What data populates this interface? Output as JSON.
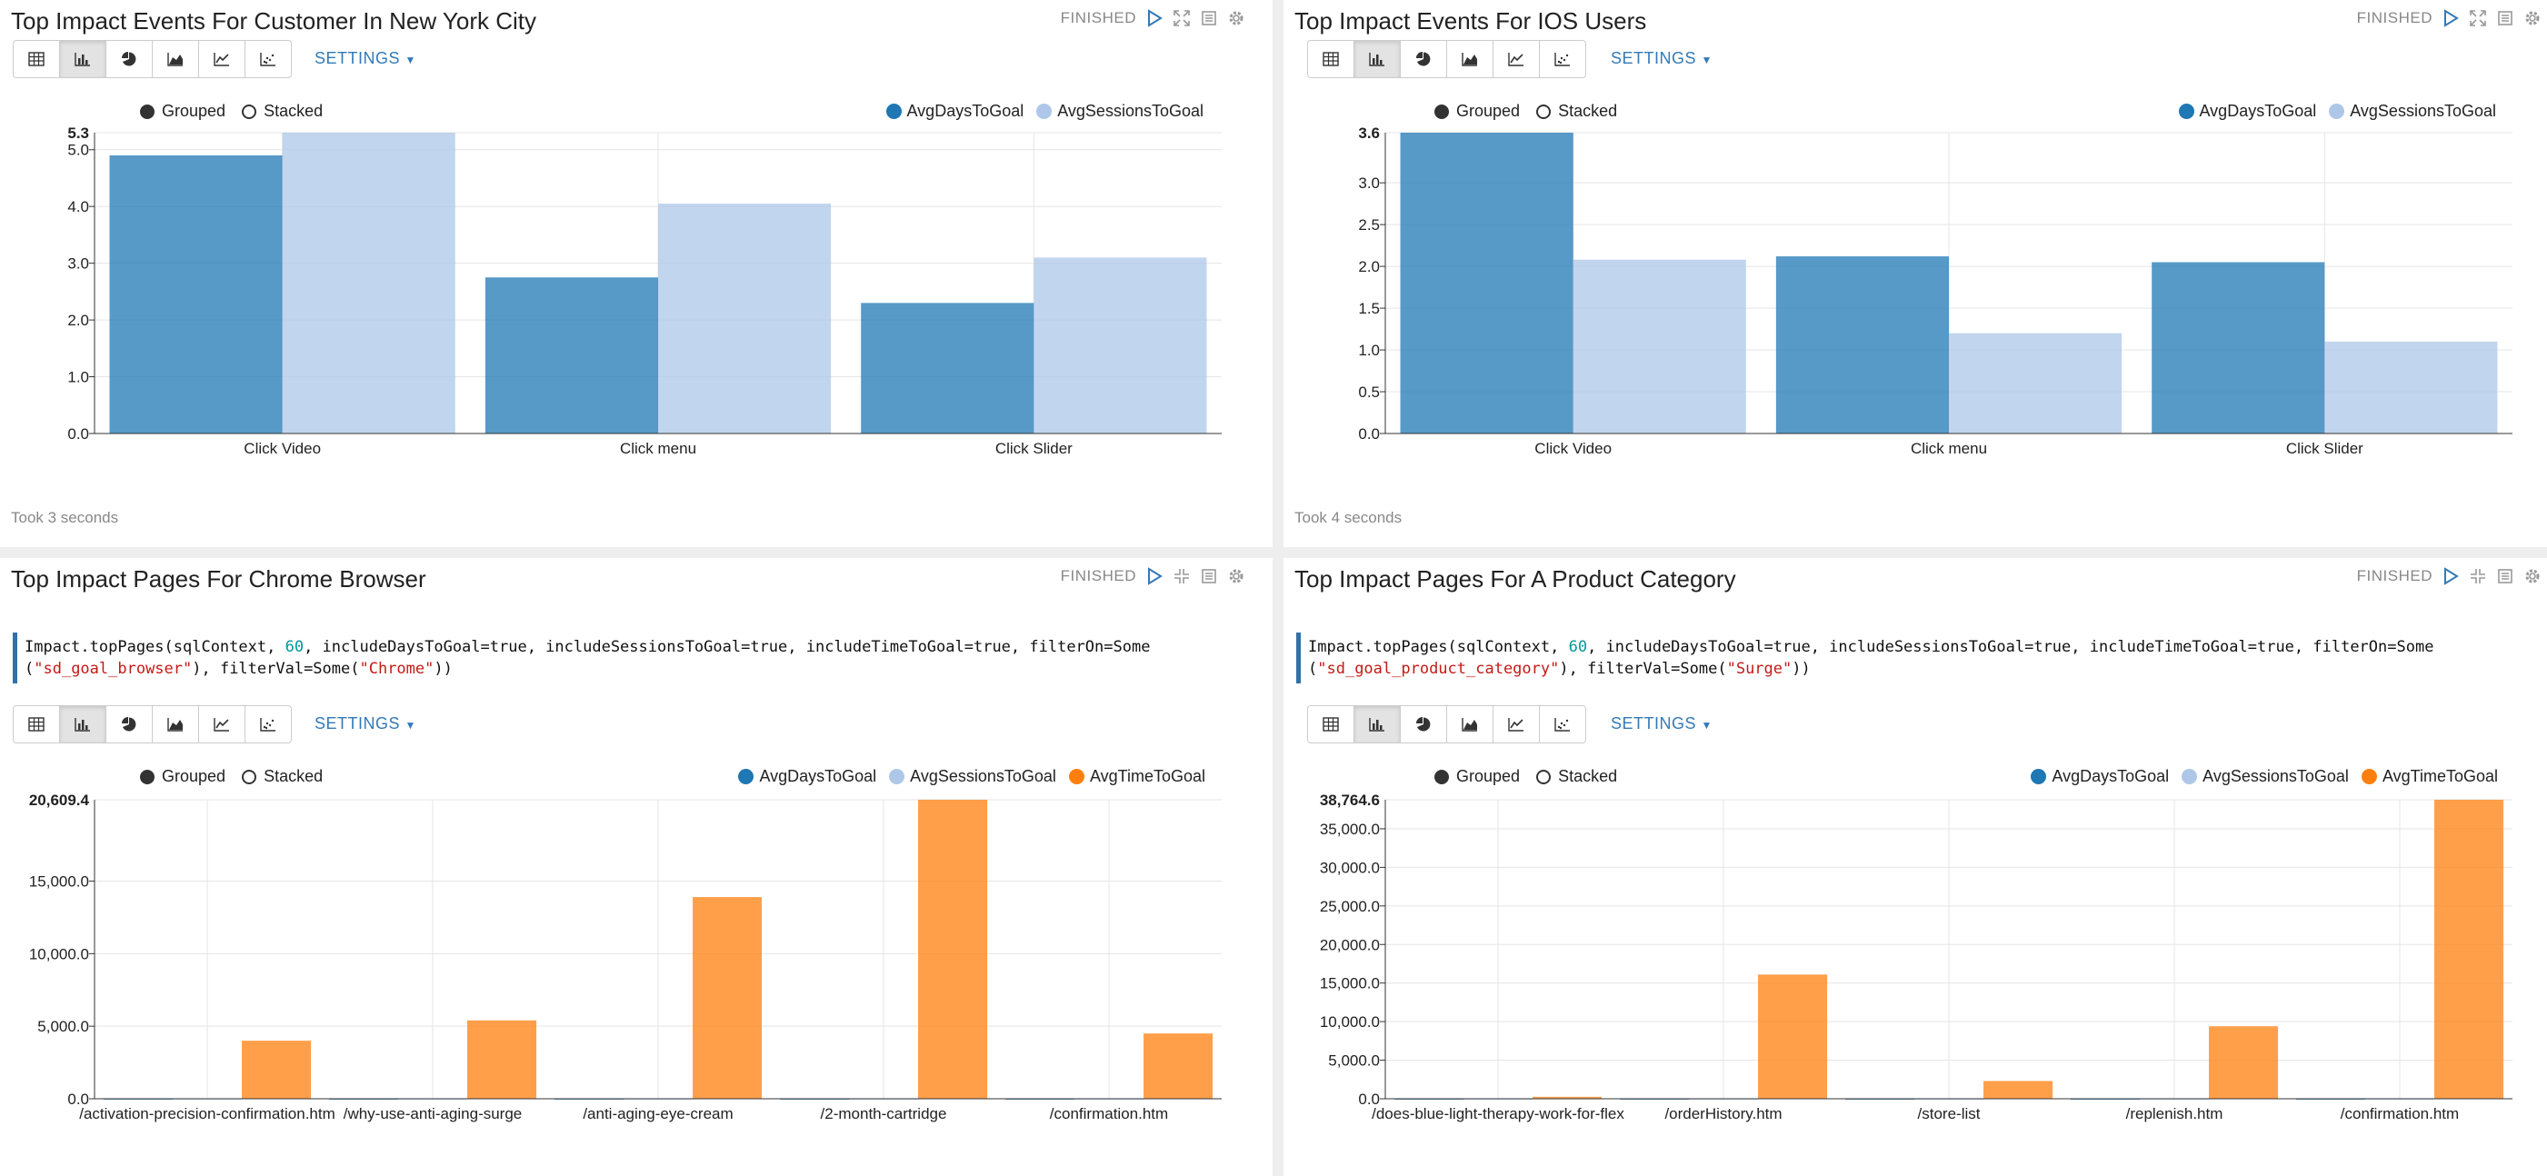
{
  "panels": [
    {
      "title": "Top Impact Events For Customer In New York City",
      "status": "FINISHED",
      "settings_label": "SETTINGS",
      "mode_grouped": "Grouped",
      "mode_stacked": "Stacked",
      "footer": "Took 3 seconds"
    },
    {
      "title": "Top Impact Events For IOS Users",
      "status": "FINISHED",
      "settings_label": "SETTINGS",
      "mode_grouped": "Grouped",
      "mode_stacked": "Stacked",
      "footer": "Took 4 seconds"
    },
    {
      "title": "Top Impact Pages For Chrome Browser",
      "status": "FINISHED",
      "settings_label": "SETTINGS",
      "mode_grouped": "Grouped",
      "mode_stacked": "Stacked",
      "code_line1": {
        "a": "Impact.topPages(sqlContext, ",
        "num": "60",
        "b": ", includeDaysToGoal=true, includeSessionsToGoal=true, includeTimeToGoal=true, filterOn=Some"
      },
      "code_line2": {
        "a": "(",
        "str1": "\"sd_goal_browser\"",
        "b": "), filterVal=Some(",
        "str2": "\"Chrome\"",
        "c": "))"
      }
    },
    {
      "title": "Top Impact Pages For A Product Category",
      "status": "FINISHED",
      "settings_label": "SETTINGS",
      "mode_grouped": "Grouped",
      "mode_stacked": "Stacked",
      "code_line1": {
        "a": "Impact.topPages(sqlContext, ",
        "num": "60",
        "b": ", includeDaysToGoal=true, includeSessionsToGoal=true, includeTimeToGoal=true, filterOn=Some"
      },
      "code_line2": {
        "a": "(",
        "str1": "\"sd_goal_product_category\"",
        "b": "), filterVal=Some(",
        "str2": "\"Surge\"",
        "c": "))"
      }
    }
  ],
  "colors": {
    "days": "#1f77b4",
    "sessions": "#aec7e8",
    "time": "#ff7f0e",
    "link": "#337ab7"
  },
  "toolbar_icons": [
    "table-icon",
    "bar-chart-icon",
    "pie-chart-icon",
    "area-chart-icon",
    "line-chart-icon",
    "scatter-chart-icon"
  ],
  "chart_data": [
    {
      "type": "bar",
      "categories": [
        "Click Video",
        "Click menu",
        "Click Slider"
      ],
      "series": [
        {
          "name": "AvgDaysToGoal",
          "values": [
            4.9,
            2.75,
            2.3
          ]
        },
        {
          "name": "AvgSessionsToGoal",
          "values": [
            5.3,
            4.05,
            3.1
          ]
        }
      ],
      "yticks": [
        "0.0",
        "1.0",
        "2.0",
        "3.0",
        "4.0",
        "5.0"
      ],
      "ymax_label": "5.3",
      "ylim": [
        0,
        5.3
      ],
      "grid": true,
      "legend": "top-right"
    },
    {
      "type": "bar",
      "categories": [
        "Click Video",
        "Click menu",
        "Click Slider"
      ],
      "series": [
        {
          "name": "AvgDaysToGoal",
          "values": [
            3.6,
            2.12,
            2.05
          ]
        },
        {
          "name": "AvgSessionsToGoal",
          "values": [
            2.08,
            1.2,
            1.1
          ]
        }
      ],
      "yticks": [
        "0.0",
        "0.5",
        "1.0",
        "1.5",
        "2.0",
        "2.5",
        "3.0"
      ],
      "ymax_label": "3.6",
      "ylim": [
        0,
        3.6
      ],
      "grid": true,
      "legend": "top-right"
    },
    {
      "type": "bar",
      "categories": [
        "/activation-precision-confirmation.htm",
        "/why-use-anti-aging-surge",
        "/anti-aging-eye-cream",
        "/2-month-cartridge",
        "/confirmation.htm"
      ],
      "series": [
        {
          "name": "AvgDaysToGoal",
          "values": [
            3,
            2,
            3,
            1,
            2
          ]
        },
        {
          "name": "AvgSessionsToGoal",
          "values": [
            5,
            4,
            4,
            3,
            4
          ]
        },
        {
          "name": "AvgTimeToGoal",
          "values": [
            4000,
            5400,
            13900,
            20609.4,
            4500
          ]
        }
      ],
      "yticks": [
        "0.0",
        "5,000.0",
        "10,000.0",
        "15,000.0"
      ],
      "ymax_label": "20,609.4",
      "ylim": [
        0,
        20609.4
      ],
      "grid": true,
      "legend": "top-right"
    },
    {
      "type": "bar",
      "categories": [
        "/does-blue-light-therapy-work-for-flex",
        "/orderHistory.htm",
        "/store-list",
        "/replenish.htm",
        "/confirmation.htm"
      ],
      "series": [
        {
          "name": "AvgDaysToGoal",
          "values": [
            2,
            3,
            2,
            1,
            2
          ]
        },
        {
          "name": "AvgSessionsToGoal",
          "values": [
            4,
            5,
            4,
            3,
            4
          ]
        },
        {
          "name": "AvgTimeToGoal",
          "values": [
            250,
            16100,
            2300,
            9400,
            38764.6
          ]
        }
      ],
      "yticks": [
        "0.0",
        "5,000.0",
        "10,000.0",
        "15,000.0",
        "20,000.0",
        "25,000.0",
        "30,000.0",
        "35,000.0"
      ],
      "ymax_label": "38,764.6",
      "ylim": [
        0,
        38764.6
      ],
      "grid": true,
      "legend": "top-right"
    }
  ]
}
